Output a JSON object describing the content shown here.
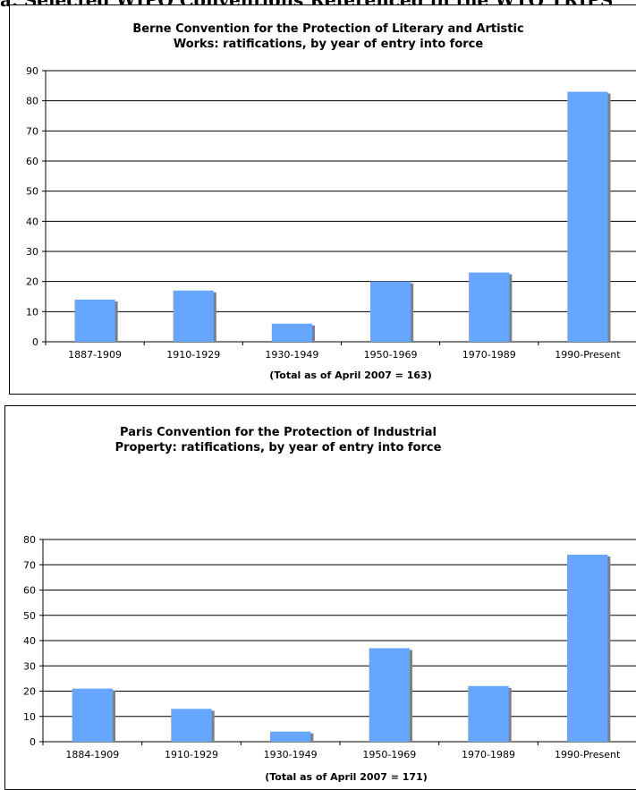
{
  "heading": "a. Selected WIPO Conventions Referenced in the WTO TRIPS",
  "colors": {
    "bar": "#66a6ff",
    "bar_shadow": "#808080",
    "grid": "#000000"
  },
  "chart_data": [
    {
      "type": "bar",
      "title": [
        "Berne Convention for the Protection of Literary and Artistic",
        "Works: ratifications, by year of entry into force"
      ],
      "xlabel": "(Total as of April 2007 = 163)",
      "ylabel": "",
      "ylim": [
        0,
        90
      ],
      "yticks": [
        0,
        10,
        20,
        30,
        40,
        50,
        60,
        70,
        80,
        90
      ],
      "grid": true,
      "legend": "none",
      "categories": [
        "1887-1909",
        "1910-1929",
        "1930-1949",
        "1950-1969",
        "1970-1989",
        "1990-Present"
      ],
      "values": [
        14,
        17,
        6,
        20,
        23,
        83
      ]
    },
    {
      "type": "bar",
      "title": [
        "Paris Convention for the Protection of Industrial",
        "Property: ratifications, by year of entry into force"
      ],
      "xlabel": "(Total as of April 2007 = 171)",
      "ylabel": "",
      "ylim": [
        0,
        80
      ],
      "yticks": [
        0,
        10,
        20,
        30,
        40,
        50,
        60,
        70,
        80
      ],
      "grid": true,
      "legend": "none",
      "categories": [
        "1884-1909",
        "1910-1929",
        "1930-1949",
        "1950-1969",
        "1970-1989",
        "1990-Present"
      ],
      "values": [
        21,
        13,
        4,
        37,
        22,
        74
      ]
    }
  ]
}
